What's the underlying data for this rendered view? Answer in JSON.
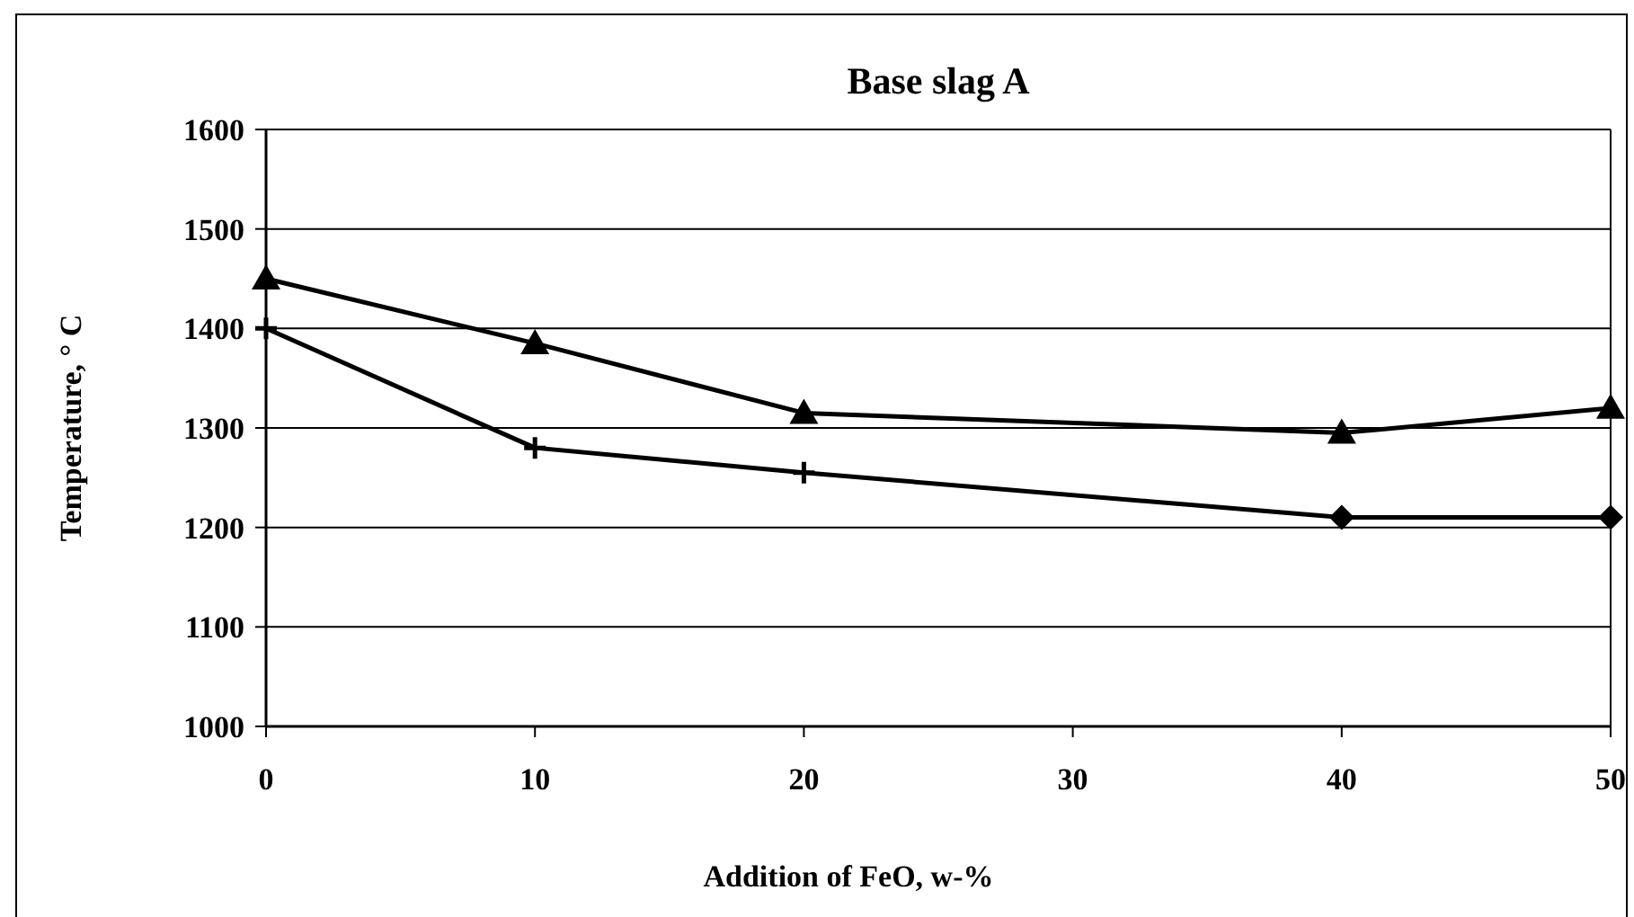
{
  "chart_data": {
    "type": "line",
    "title": "Base slag A",
    "xlabel": "Addition of FeO, w-%",
    "ylabel": "Temperature, ° C",
    "x": [
      0,
      10,
      20,
      40,
      50
    ],
    "series": [
      {
        "color": "#000000",
        "values": [
          1450,
          1385,
          1315,
          1295,
          1320
        ],
        "marker": "triangle"
      },
      {
        "color": "#000000",
        "values": [
          1400,
          1280,
          1255,
          1210,
          1210
        ],
        "marker": "none"
      },
      {
        "type": "scatter",
        "color": "#000000",
        "x": [
          0,
          10,
          20
        ],
        "values": [
          1400,
          1280,
          1255
        ],
        "marker": "cross"
      },
      {
        "type": "scatter",
        "color": "#000000",
        "x": [
          40,
          50
        ],
        "values": [
          1210,
          1210
        ],
        "marker": "diamond"
      }
    ],
    "xlim": [
      0,
      50
    ],
    "xticks": [
      0,
      10,
      20,
      30,
      40,
      50
    ],
    "ylim": [
      1000,
      1600
    ],
    "yticks": [
      1000,
      1100,
      1200,
      1300,
      1400,
      1500,
      1600
    ],
    "grid": "y",
    "line_style": "solid"
  }
}
